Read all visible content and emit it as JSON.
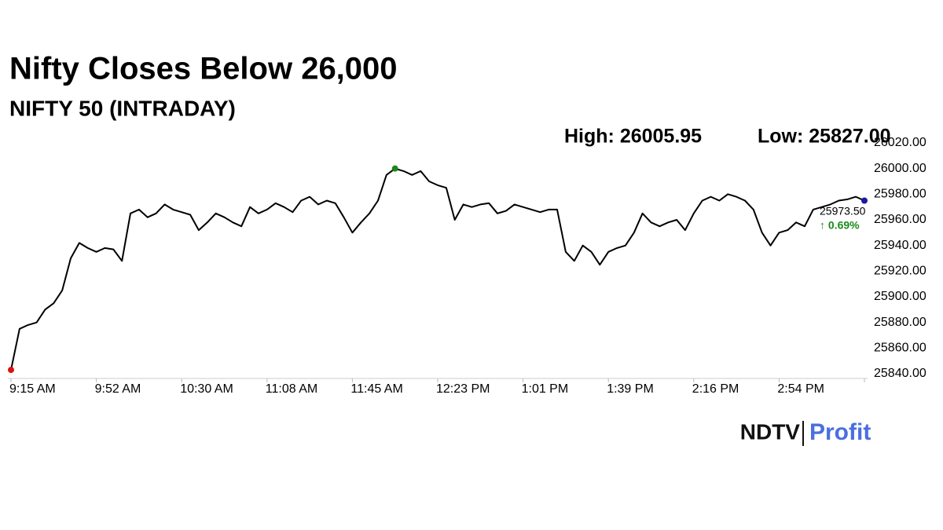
{
  "chart_data": {
    "type": "line",
    "title": "Nifty Closes Below 26,000",
    "subtitle": "NIFTY 50 (INTRADAY)",
    "annotations": {
      "high": "High: 26005.95",
      "low": "Low: 25827.00",
      "last": "25973.50",
      "change": "↑ 0.69%"
    },
    "logo": {
      "left": "NDTV",
      "right": "Profit"
    },
    "categories": [
      "9:15 AM",
      null,
      null,
      null,
      null,
      null,
      null,
      null,
      null,
      null,
      "9:52 AM",
      null,
      null,
      null,
      null,
      null,
      null,
      null,
      null,
      null,
      "10:30 AM",
      null,
      null,
      null,
      null,
      null,
      null,
      null,
      null,
      null,
      "11:08 AM",
      null,
      null,
      null,
      null,
      null,
      null,
      null,
      null,
      null,
      "11:45 AM",
      null,
      null,
      null,
      null,
      null,
      null,
      null,
      null,
      null,
      "12:23 PM",
      null,
      null,
      null,
      null,
      null,
      null,
      null,
      null,
      null,
      "1:01 PM",
      null,
      null,
      null,
      null,
      null,
      null,
      null,
      null,
      null,
      "1:39 PM",
      null,
      null,
      null,
      null,
      null,
      null,
      null,
      null,
      null,
      "2:16 PM",
      null,
      null,
      null,
      null,
      null,
      null,
      null,
      null,
      null,
      "2:54 PM",
      null,
      null,
      null,
      null,
      null,
      null,
      null,
      null,
      null,
      null
    ],
    "series": [
      {
        "name": "NIFTY 50",
        "color": "#000000",
        "values": [
          25843,
          25875,
          25878,
          25880,
          25890,
          25895,
          25905,
          25930,
          25942,
          25938,
          25935,
          25938,
          25937,
          25928,
          25965,
          25968,
          25962,
          25965,
          25972,
          25968,
          25966,
          25964,
          25952,
          25958,
          25965,
          25962,
          25958,
          25955,
          25970,
          25965,
          25968,
          25973,
          25970,
          25966,
          25975,
          25978,
          25972,
          25975,
          25973,
          25962,
          25950,
          25958,
          25965,
          25975,
          25995,
          26000,
          25998,
          25995,
          25998,
          25990,
          25987,
          25985,
          25960,
          25972,
          25970,
          25972,
          25973,
          25965,
          25967,
          25972,
          25970,
          25968,
          25966,
          25968,
          25968,
          25935,
          25928,
          25940,
          25935,
          25925,
          25935,
          25938,
          25940,
          25950,
          25965,
          25958,
          25955,
          25958,
          25960,
          25952,
          25965,
          25975,
          25978,
          25975,
          25980,
          25978,
          25975,
          25968,
          25950,
          25940,
          25950,
          25952,
          25958,
          25955,
          25968,
          25970,
          25972,
          25975,
          25976,
          25978,
          25975
        ]
      }
    ],
    "ylim": [
      25840,
      26020
    ],
    "yticks": [
      {
        "value": 25840,
        "label": "25840.00"
      },
      {
        "value": 25860,
        "label": "25860.00"
      },
      {
        "value": 25880,
        "label": "25880.00"
      },
      {
        "value": 25900,
        "label": "25900.00"
      },
      {
        "value": 25920,
        "label": "25920.00"
      },
      {
        "value": 25940,
        "label": "25940.00"
      },
      {
        "value": 25960,
        "label": "25960.00"
      },
      {
        "value": 25980,
        "label": "25980.00"
      },
      {
        "value": 26000,
        "label": "26000.00"
      },
      {
        "value": 26020,
        "label": "26020.00"
      }
    ],
    "grid": false
  }
}
